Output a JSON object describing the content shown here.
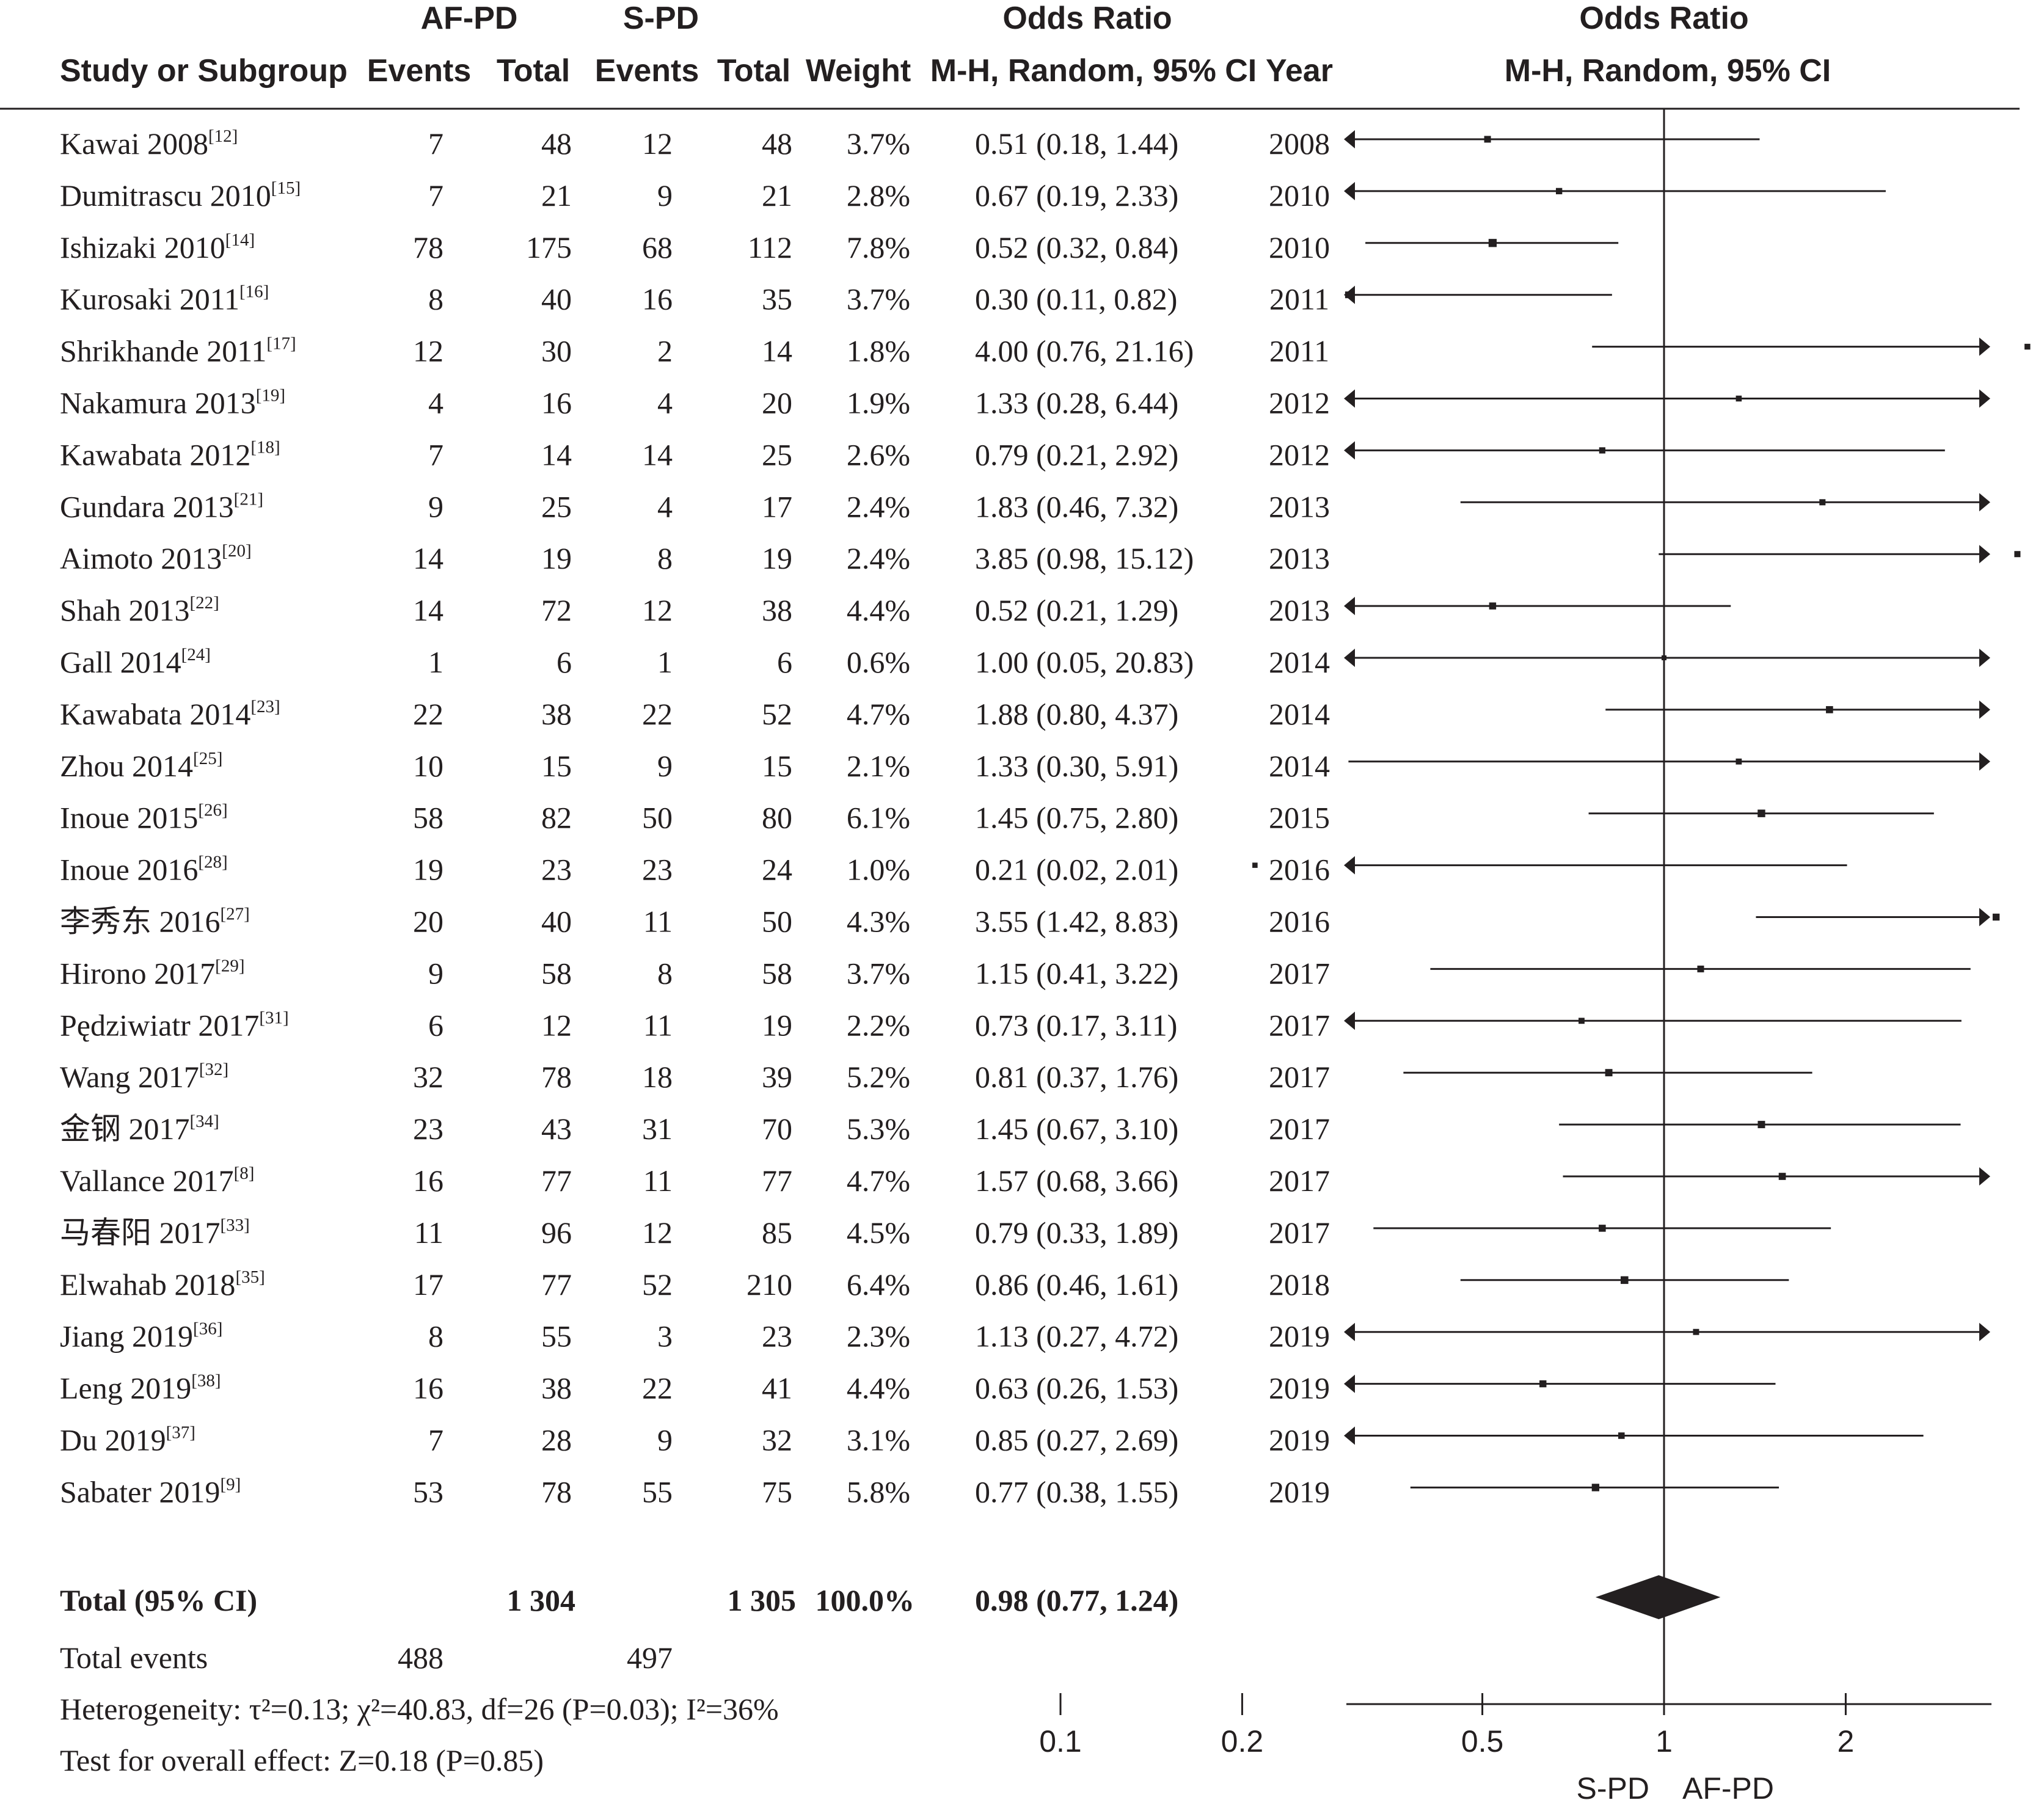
{
  "header": {
    "group1_label": "AF-PD",
    "group2_label": "S-PD",
    "or_label_top": "Odds Ratio",
    "study_col": "Study or Subgroup",
    "events_col": "Events",
    "total_col": "Total",
    "weight_col": "Weight",
    "or_method": "M-H, Random, 95% CI",
    "year_col": "Year",
    "plot_label_top": "Odds Ratio",
    "plot_method": "M-H, Random, 95% CI"
  },
  "chart_data": {
    "type": "forest",
    "x_scale": "log",
    "xlim": [
      0.1,
      10
    ],
    "null_value": 1,
    "x_ticks": [
      "0.1",
      "0.2",
      "0.5",
      "1",
      "2",
      "5",
      "10"
    ],
    "favours_left": "S-PD",
    "favours_right": "AF-PD",
    "studies": [
      {
        "name": "Kawai 2008",
        "ref": "[12]",
        "e1": "7",
        "n1": "48",
        "e2": "12",
        "n2": "48",
        "weight": "3.7%",
        "ci_text": "0.51 (0.18, 1.44)",
        "year": "2008",
        "or": 0.51,
        "lo": 0.18,
        "hi": 1.44
      },
      {
        "name": "Dumitrascu 2010",
        "ref": "[15]",
        "e1": "7",
        "n1": "21",
        "e2": "9",
        "n2": "21",
        "weight": "2.8%",
        "ci_text": "0.67 (0.19, 2.33)",
        "year": "2010",
        "or": 0.67,
        "lo": 0.19,
        "hi": 2.33
      },
      {
        "name": "Ishizaki 2010",
        "ref": "[14]",
        "e1": "78",
        "n1": "175",
        "e2": "68",
        "n2": "112",
        "weight": "7.8%",
        "ci_text": "0.52 (0.32, 0.84)",
        "year": "2010",
        "or": 0.52,
        "lo": 0.32,
        "hi": 0.84
      },
      {
        "name": "Kurosaki 2011",
        "ref": "[16]",
        "e1": "8",
        "n1": "40",
        "e2": "16",
        "n2": "35",
        "weight": "3.7%",
        "ci_text": "0.30 (0.11, 0.82)",
        "year": "2011",
        "or": 0.3,
        "lo": 0.11,
        "hi": 0.82
      },
      {
        "name": "Shrikhande 2011",
        "ref": "[17]",
        "e1": "12",
        "n1": "30",
        "e2": "2",
        "n2": "14",
        "weight": "1.8%",
        "ci_text": "4.00 (0.76, 21.16)",
        "year": "2011",
        "or": 4.0,
        "lo": 0.76,
        "hi": 21.16
      },
      {
        "name": "Nakamura 2013",
        "ref": "[19]",
        "e1": "4",
        "n1": "16",
        "e2": "4",
        "n2": "20",
        "weight": "1.9%",
        "ci_text": "1.33 (0.28, 6.44)",
        "year": "2012",
        "or": 1.33,
        "lo": 0.28,
        "hi": 6.44
      },
      {
        "name": "Kawabata 2012",
        "ref": "[18]",
        "e1": "7",
        "n1": "14",
        "e2": "14",
        "n2": "25",
        "weight": "2.6%",
        "ci_text": "0.79 (0.21, 2.92)",
        "year": "2012",
        "or": 0.79,
        "lo": 0.21,
        "hi": 2.92
      },
      {
        "name": "Gundara 2013",
        "ref": "[21]",
        "e1": "9",
        "n1": "25",
        "e2": "4",
        "n2": "17",
        "weight": "2.4%",
        "ci_text": "1.83 (0.46, 7.32)",
        "year": "2013",
        "or": 1.83,
        "lo": 0.46,
        "hi": 7.32
      },
      {
        "name": "Aimoto 2013",
        "ref": "[20]",
        "e1": "14",
        "n1": "19",
        "e2": "8",
        "n2": "19",
        "weight": "2.4%",
        "ci_text": "3.85 (0.98, 15.12)",
        "year": "2013",
        "or": 3.85,
        "lo": 0.98,
        "hi": 15.12
      },
      {
        "name": "Shah 2013",
        "ref": "[22]",
        "e1": "14",
        "n1": "72",
        "e2": "12",
        "n2": "38",
        "weight": "4.4%",
        "ci_text": "0.52 (0.21, 1.29)",
        "year": "2013",
        "or": 0.52,
        "lo": 0.21,
        "hi": 1.29
      },
      {
        "name": "Gall 2014",
        "ref": "[24]",
        "e1": "1",
        "n1": "6",
        "e2": "1",
        "n2": "6",
        "weight": "0.6%",
        "ci_text": "1.00 (0.05, 20.83)",
        "year": "2014",
        "or": 1.0,
        "lo": 0.05,
        "hi": 20.83
      },
      {
        "name": "Kawabata 2014",
        "ref": "[23]",
        "e1": "22",
        "n1": "38",
        "e2": "22",
        "n2": "52",
        "weight": "4.7%",
        "ci_text": "1.88 (0.80, 4.37)",
        "year": "2014",
        "or": 1.88,
        "lo": 0.8,
        "hi": 4.37
      },
      {
        "name": "Zhou 2014",
        "ref": "[25]",
        "e1": "10",
        "n1": "15",
        "e2": "9",
        "n2": "15",
        "weight": "2.1%",
        "ci_text": "1.33 (0.30, 5.91)",
        "year": "2014",
        "or": 1.33,
        "lo": 0.3,
        "hi": 5.91
      },
      {
        "name": "Inoue 2015",
        "ref": "[26]",
        "e1": "58",
        "n1": "82",
        "e2": "50",
        "n2": "80",
        "weight": "6.1%",
        "ci_text": "1.45 (0.75, 2.80)",
        "year": "2015",
        "or": 1.45,
        "lo": 0.75,
        "hi": 2.8
      },
      {
        "name": "Inoue 2016",
        "ref": "[28]",
        "e1": "19",
        "n1": "23",
        "e2": "23",
        "n2": "24",
        "weight": "1.0%",
        "ci_text": "0.21 (0.02, 2.01)",
        "year": "2016",
        "or": 0.21,
        "lo": 0.02,
        "hi": 2.01
      },
      {
        "name": "李秀东 2016",
        "ref": "[27]",
        "e1": "20",
        "n1": "40",
        "e2": "11",
        "n2": "50",
        "weight": "4.3%",
        "ci_text": "3.55 (1.42, 8.83)",
        "year": "2016",
        "or": 3.55,
        "lo": 1.42,
        "hi": 8.83
      },
      {
        "name": "Hirono 2017",
        "ref": "[29]",
        "e1": "9",
        "n1": "58",
        "e2": "8",
        "n2": "58",
        "weight": "3.7%",
        "ci_text": "1.15 (0.41, 3.22)",
        "year": "2017",
        "or": 1.15,
        "lo": 0.41,
        "hi": 3.22
      },
      {
        "name": "Pędziwiatr 2017",
        "ref": "[31]",
        "e1": "6",
        "n1": "12",
        "e2": "11",
        "n2": "19",
        "weight": "2.2%",
        "ci_text": "0.73 (0.17, 3.11)",
        "year": "2017",
        "or": 0.73,
        "lo": 0.17,
        "hi": 3.11
      },
      {
        "name": "Wang 2017",
        "ref": "[32]",
        "e1": "32",
        "n1": "78",
        "e2": "18",
        "n2": "39",
        "weight": "5.2%",
        "ci_text": "0.81 (0.37, 1.76)",
        "year": "2017",
        "or": 0.81,
        "lo": 0.37,
        "hi": 1.76
      },
      {
        "name": "金钢 2017",
        "ref": "[34]",
        "e1": "23",
        "n1": "43",
        "e2": "31",
        "n2": "70",
        "weight": "5.3%",
        "ci_text": "1.45 (0.67, 3.10)",
        "year": "2017",
        "or": 1.45,
        "lo": 0.67,
        "hi": 3.1
      },
      {
        "name": "Vallance 2017",
        "ref": "[8]",
        "e1": "16",
        "n1": "77",
        "e2": "11",
        "n2": "77",
        "weight": "4.7%",
        "ci_text": "1.57 (0.68, 3.66)",
        "year": "2017",
        "or": 1.57,
        "lo": 0.68,
        "hi": 3.66
      },
      {
        "name": "马春阳 2017",
        "ref": "[33]",
        "e1": "11",
        "n1": "96",
        "e2": "12",
        "n2": "85",
        "weight": "4.5%",
        "ci_text": "0.79 (0.33, 1.89)",
        "year": "2017",
        "or": 0.79,
        "lo": 0.33,
        "hi": 1.89
      },
      {
        "name": "Elwahab 2018",
        "ref": "[35]",
        "e1": "17",
        "n1": "77",
        "e2": "52",
        "n2": "210",
        "weight": "6.4%",
        "ci_text": "0.86 (0.46, 1.61)",
        "year": "2018",
        "or": 0.86,
        "lo": 0.46,
        "hi": 1.61
      },
      {
        "name": "Jiang 2019",
        "ref": "[36]",
        "e1": "8",
        "n1": "55",
        "e2": "3",
        "n2": "23",
        "weight": "2.3%",
        "ci_text": "1.13 (0.27, 4.72)",
        "year": "2019",
        "or": 1.13,
        "lo": 0.27,
        "hi": 4.72
      },
      {
        "name": "Leng 2019",
        "ref": "[38]",
        "e1": "16",
        "n1": "38",
        "e2": "22",
        "n2": "41",
        "weight": "4.4%",
        "ci_text": "0.63 (0.26, 1.53)",
        "year": "2019",
        "or": 0.63,
        "lo": 0.26,
        "hi": 1.53
      },
      {
        "name": "Du 2019",
        "ref": "[37]",
        "e1": "7",
        "n1": "28",
        "e2": "9",
        "n2": "32",
        "weight": "3.1%",
        "ci_text": "0.85 (0.27, 2.69)",
        "year": "2019",
        "or": 0.85,
        "lo": 0.27,
        "hi": 2.69
      },
      {
        "name": "Sabater 2019",
        "ref": "[9]",
        "e1": "53",
        "n1": "78",
        "e2": "55",
        "n2": "75",
        "weight": "5.8%",
        "ci_text": "0.77 (0.38, 1.55)",
        "year": "2019",
        "or": 0.77,
        "lo": 0.38,
        "hi": 1.55
      }
    ],
    "total": {
      "label": "Total (95% CI)",
      "n1": "1 304",
      "n2": "1 305",
      "weight": "100.0%",
      "ci_text": "0.98 (0.77, 1.24)",
      "or": 0.98,
      "lo": 0.77,
      "hi": 1.24
    },
    "total_events": {
      "label": "Total events",
      "e1": "488",
      "e2": "497"
    },
    "heterogeneity": "Heterogeneity: τ²=0.13; χ²=40.83, df=26 (P=0.03); I²=36%",
    "overall_effect": "Test for overall effect: Z=0.18 (P=0.85)"
  }
}
